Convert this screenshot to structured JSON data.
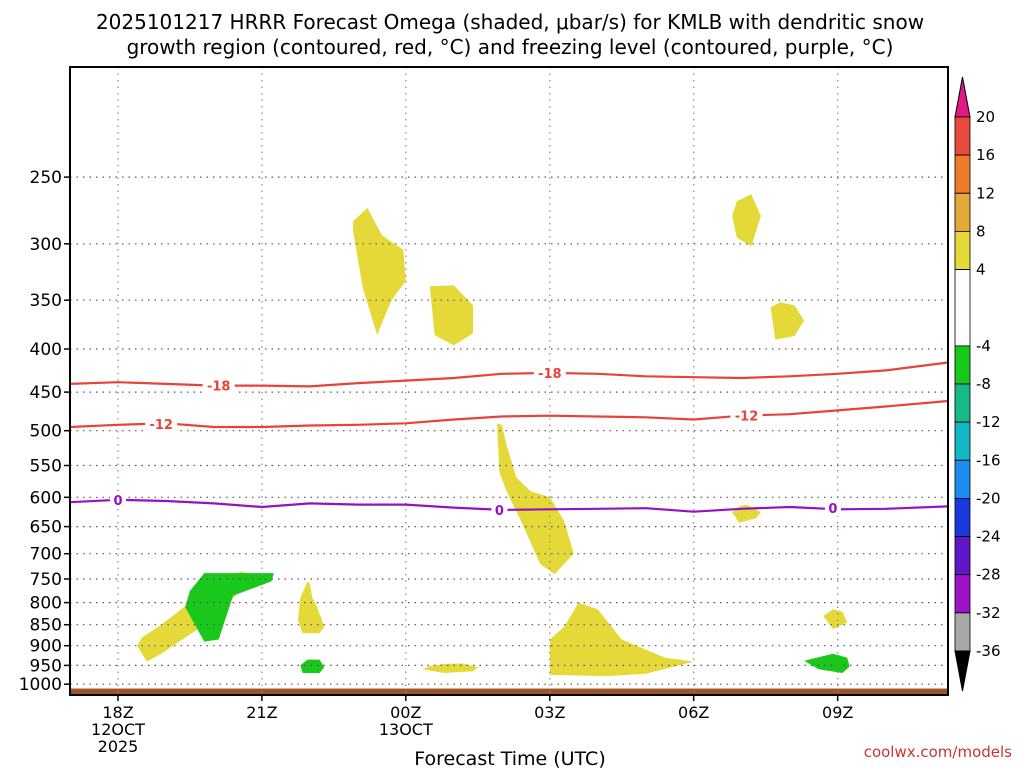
{
  "chart_data": {
    "type": "heatmap",
    "title_lines": [
      "2025101217 HRRR Forecast Omega (shaded, μbar/s) for KMLB with dendritic snow",
      "growth region (contoured, red, °C) and freezing level (contoured, purple, °C)"
    ],
    "xlabel": "Forecast Time (UTC)",
    "ylabel": "",
    "xlim": [
      17,
      35.3
    ],
    "ylim_hpa": [
      1030,
      185
    ],
    "y_scale": "log",
    "x_ticks": [
      {
        "x": 18,
        "lines": [
          "18Z",
          "12OCT",
          "2025"
        ]
      },
      {
        "x": 21,
        "lines": [
          "21Z"
        ]
      },
      {
        "x": 24,
        "lines": [
          "00Z",
          "13OCT"
        ]
      },
      {
        "x": 27,
        "lines": [
          "03Z"
        ]
      },
      {
        "x": 30,
        "lines": [
          "06Z"
        ]
      },
      {
        "x": 33,
        "lines": [
          "09Z"
        ]
      }
    ],
    "y_ticks": [
      250,
      300,
      350,
      400,
      450,
      500,
      550,
      600,
      650,
      700,
      750,
      800,
      850,
      900,
      950,
      1000
    ],
    "grid": true,
    "colorbar": {
      "ticks": [
        "20",
        "16",
        "12",
        "8",
        "4",
        "-4",
        "-8",
        "-12",
        "-16",
        "-20",
        "-24",
        "-28",
        "-32",
        "-36"
      ],
      "bands": [
        {
          "from": 16,
          "to": 20,
          "color": "#e84a3c"
        },
        {
          "from": 12,
          "to": 16,
          "color": "#ec7b2a"
        },
        {
          "from": 8,
          "to": 12,
          "color": "#e5a93a"
        },
        {
          "from": 4,
          "to": 8,
          "color": "#e5d93a"
        },
        {
          "from": -4,
          "to": 4,
          "color": "#ffffff"
        },
        {
          "from": -8,
          "to": -4,
          "color": "#19c81b"
        },
        {
          "from": -12,
          "to": -8,
          "color": "#19b889"
        },
        {
          "from": -16,
          "to": -12,
          "color": "#13b7c8"
        },
        {
          "from": -20,
          "to": -16,
          "color": "#1d8cf0"
        },
        {
          "from": -24,
          "to": -20,
          "color": "#1c39e0"
        },
        {
          "from": -28,
          "to": -24,
          "color": "#5f17c8"
        },
        {
          "from": -32,
          "to": -28,
          "color": "#a012c8"
        },
        {
          "from": -36,
          "to": -32,
          "color": "#a8a8a8"
        }
      ],
      "top_cap_color": "#e01a82",
      "bottom_cap_color": "#000000"
    },
    "shaded_regions": [
      {
        "class": "4 to 8",
        "color": "#e5d93a",
        "points": [
          [
            18.4,
            900
          ],
          [
            18.6,
            940
          ],
          [
            18.9,
            920
          ],
          [
            19.8,
            850
          ],
          [
            20.4,
            790
          ],
          [
            20.7,
            760
          ],
          [
            20.8,
            745
          ],
          [
            20.6,
            735
          ],
          [
            20.2,
            745
          ],
          [
            19.9,
            780
          ],
          [
            19.5,
            800
          ],
          [
            18.9,
            850
          ],
          [
            18.5,
            880
          ]
        ]
      },
      {
        "class": "4 to 8",
        "color": "#e5d93a",
        "points": [
          [
            21.75,
            840
          ],
          [
            21.85,
            870
          ],
          [
            22.2,
            870
          ],
          [
            22.3,
            855
          ],
          [
            22.15,
            810
          ],
          [
            22.05,
            790
          ],
          [
            22,
            760
          ],
          [
            21.95,
            755
          ],
          [
            21.8,
            790
          ]
        ]
      },
      {
        "class": "4 to 8",
        "color": "#e5d93a",
        "points": [
          [
            22.9,
            290
          ],
          [
            23.1,
            338
          ],
          [
            23.4,
            385
          ],
          [
            23.7,
            350
          ],
          [
            24.0,
            332
          ],
          [
            23.95,
            305
          ],
          [
            23.5,
            293
          ],
          [
            23.2,
            272
          ],
          [
            22.9,
            282
          ]
        ]
      },
      {
        "class": "4 to 8",
        "color": "#e5d93a",
        "points": [
          [
            24.5,
            337
          ],
          [
            24.6,
            385
          ],
          [
            25.0,
            396
          ],
          [
            25.4,
            383
          ],
          [
            25.4,
            355
          ],
          [
            25.0,
            336
          ]
        ]
      },
      {
        "class": "4 to 8",
        "color": "#e5d93a",
        "points": [
          [
            24.35,
            960
          ],
          [
            24.8,
            970
          ],
          [
            25.4,
            965
          ],
          [
            25.5,
            955
          ],
          [
            25.2,
            945
          ],
          [
            24.8,
            946
          ],
          [
            24.5,
            952
          ]
        ]
      },
      {
        "class": "4 to 8",
        "color": "#e5d93a",
        "points": [
          [
            25.9,
            490
          ],
          [
            25.95,
            560
          ],
          [
            26.1,
            590
          ],
          [
            26.4,
            640
          ],
          [
            26.8,
            720
          ],
          [
            27.1,
            740
          ],
          [
            27.5,
            700
          ],
          [
            27.3,
            640
          ],
          [
            27.0,
            600
          ],
          [
            26.6,
            590
          ],
          [
            26.3,
            568
          ],
          [
            26.1,
            520
          ],
          [
            26.0,
            492
          ]
        ]
      },
      {
        "class": "4 to 8",
        "color": "#e5d93a",
        "points": [
          [
            27.0,
            885
          ],
          [
            27.0,
            975
          ],
          [
            28.2,
            978
          ],
          [
            29.0,
            972
          ],
          [
            30.0,
            940
          ],
          [
            29.4,
            930
          ],
          [
            28.5,
            885
          ],
          [
            28.0,
            815
          ],
          [
            27.6,
            800
          ],
          [
            27.3,
            855
          ]
        ]
      },
      {
        "class": "4 to 8",
        "color": "#e5d93a",
        "points": [
          [
            30.8,
            278
          ],
          [
            30.9,
            295
          ],
          [
            31.2,
            302
          ],
          [
            31.4,
            278
          ],
          [
            31.2,
            262
          ],
          [
            30.9,
            267
          ]
        ]
      },
      {
        "class": "4 to 8",
        "color": "#e5d93a",
        "points": [
          [
            31.6,
            357
          ],
          [
            31.7,
            390
          ],
          [
            32.1,
            386
          ],
          [
            32.3,
            370
          ],
          [
            32.1,
            355
          ],
          [
            31.8,
            352
          ]
        ]
      },
      {
        "class": "4 to 8",
        "color": "#e5d93a",
        "points": [
          [
            30.8,
            625
          ],
          [
            30.95,
            643
          ],
          [
            31.3,
            635
          ],
          [
            31.4,
            625
          ],
          [
            31.1,
            612
          ],
          [
            30.95,
            615
          ]
        ]
      },
      {
        "class": "4 to 8",
        "color": "#e5d93a",
        "points": [
          [
            32.7,
            830
          ],
          [
            32.9,
            860
          ],
          [
            33.2,
            845
          ],
          [
            33.1,
            820
          ],
          [
            32.9,
            815
          ]
        ]
      },
      {
        "class": "-8 to -4",
        "color": "#19c81b",
        "points": [
          [
            19.5,
            775
          ],
          [
            19.4,
            810
          ],
          [
            19.8,
            890
          ],
          [
            20.1,
            885
          ],
          [
            20.4,
            785
          ],
          [
            21.2,
            755
          ],
          [
            21.25,
            738
          ],
          [
            19.8,
            738
          ]
        ]
      },
      {
        "class": "-8 to -4",
        "color": "#19c81b",
        "points": [
          [
            21.8,
            950
          ],
          [
            21.85,
            970
          ],
          [
            22.2,
            970
          ],
          [
            22.3,
            955
          ],
          [
            22.2,
            935
          ],
          [
            21.95,
            935
          ]
        ]
      },
      {
        "class": "-8 to -4",
        "color": "#19c81b",
        "points": [
          [
            32.3,
            938
          ],
          [
            32.6,
            960
          ],
          [
            33.1,
            970
          ],
          [
            33.25,
            953
          ],
          [
            33.2,
            930
          ],
          [
            32.9,
            920
          ]
        ]
      }
    ],
    "contours": [
      {
        "name": "-18 °C isotherm",
        "value": "-18",
        "color": "#e8433a",
        "points": [
          [
            17,
            440
          ],
          [
            18,
            438
          ],
          [
            19,
            440
          ],
          [
            20,
            442
          ],
          [
            21,
            442
          ],
          [
            22,
            443
          ],
          [
            23,
            439
          ],
          [
            24,
            436
          ],
          [
            25,
            433
          ],
          [
            26,
            428
          ],
          [
            27,
            427
          ],
          [
            28,
            428
          ],
          [
            29,
            431
          ],
          [
            30,
            432
          ],
          [
            31,
            433
          ],
          [
            32,
            431
          ],
          [
            33,
            428
          ],
          [
            34,
            424
          ],
          [
            35.3,
            415
          ]
        ],
        "labels": [
          {
            "x": 20.1,
            "p": 442
          },
          {
            "x": 27.0,
            "p": 427
          }
        ]
      },
      {
        "name": "-12 °C isotherm",
        "value": "-12",
        "color": "#e8433a",
        "points": [
          [
            17,
            495
          ],
          [
            18,
            492
          ],
          [
            19,
            490
          ],
          [
            20,
            495
          ],
          [
            21,
            495
          ],
          [
            22,
            493
          ],
          [
            23,
            492
          ],
          [
            24,
            490
          ],
          [
            25,
            485
          ],
          [
            26,
            481
          ],
          [
            27,
            480
          ],
          [
            28,
            481
          ],
          [
            29,
            482
          ],
          [
            30,
            485
          ],
          [
            31,
            480
          ],
          [
            32,
            478
          ],
          [
            33,
            473
          ],
          [
            34,
            468
          ],
          [
            35.3,
            461
          ]
        ],
        "labels": [
          {
            "x": 18.9,
            "p": 491
          },
          {
            "x": 31.1,
            "p": 480
          }
        ]
      },
      {
        "name": "0 °C freezing level",
        "value": "0",
        "color": "#9511c3",
        "points": [
          [
            17,
            608
          ],
          [
            18,
            604
          ],
          [
            19,
            606
          ],
          [
            20,
            610
          ],
          [
            21,
            616
          ],
          [
            22,
            610
          ],
          [
            23,
            612
          ],
          [
            24,
            612
          ],
          [
            25,
            617
          ],
          [
            26,
            621
          ],
          [
            27,
            620
          ],
          [
            28,
            619
          ],
          [
            29,
            618
          ],
          [
            30,
            624
          ],
          [
            31,
            619
          ],
          [
            32,
            616
          ],
          [
            33,
            620
          ],
          [
            34,
            619
          ],
          [
            35.3,
            615
          ]
        ],
        "labels": [
          {
            "x": 18.0,
            "p": 604
          },
          {
            "x": 25.95,
            "p": 621
          },
          {
            "x": 32.9,
            "p": 618
          }
        ]
      }
    ],
    "terrain": {
      "color": "#a0522d",
      "from_hpa": 1030,
      "to_hpa": 1012
    }
  },
  "credit": "coolwx.com/models"
}
